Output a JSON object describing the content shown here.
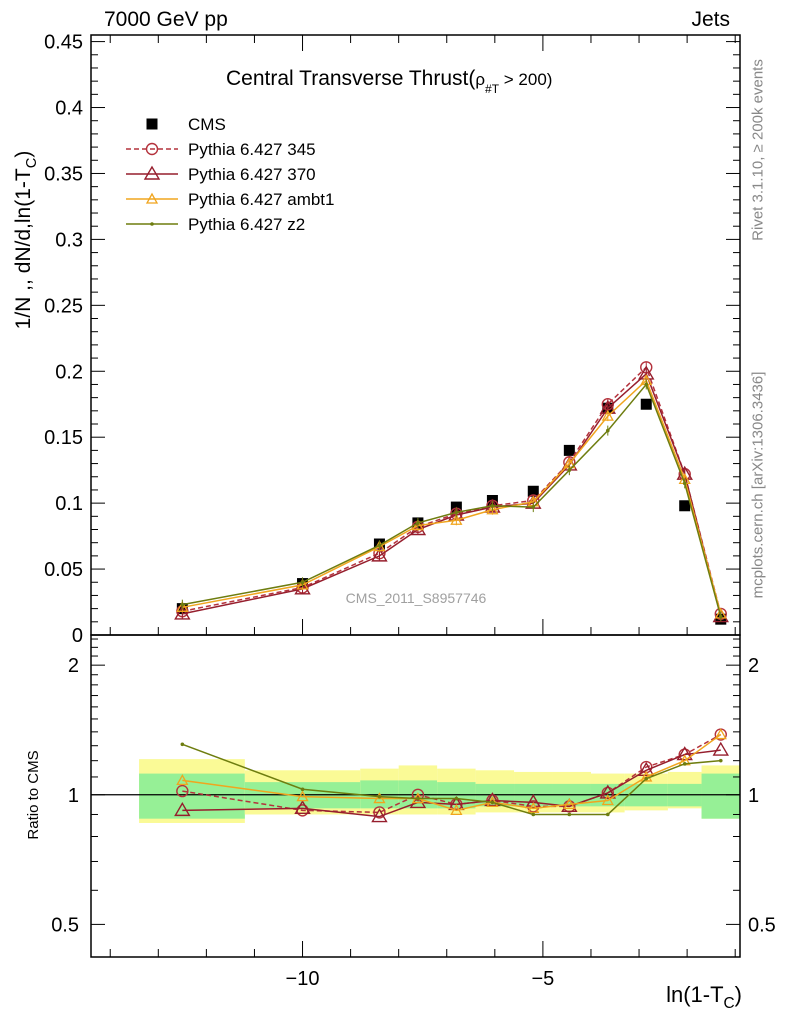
{
  "header": {
    "left": "7000 GeV pp",
    "right": "Jets"
  },
  "side": {
    "rivet": "Rivet 3.1.10, ≥ 200k events",
    "mcplots": "mcplots.cern.ch [arXiv:1306.3436]"
  },
  "watermark": "CMS_2011_S8957746",
  "colors": {
    "cms": "#000000",
    "p345": "#b4323c",
    "p370": "#961e2d",
    "ambt1": "#f0a51e",
    "z2": "#6e7d0f",
    "band_inner": "#96f096",
    "band_outer": "#fafa96"
  },
  "chart_data": [
    {
      "type": "line",
      "panel": "main",
      "title": "Central Transverse Thrust",
      "title_sub": "ρ",
      "title_sub_index": "#T",
      "title_cond": " > 200)",
      "ylabel": "1/N ,, dN/d,ln(1-T",
      "ylabel_sub": "C",
      "ylabel_tail": ")",
      "xlim": [
        -14.4,
        -0.9
      ],
      "ylim": [
        0,
        0.455
      ],
      "yticks": [
        0,
        0.05,
        0.1,
        0.15,
        0.2,
        0.25,
        0.3,
        0.35,
        0.4,
        0.45
      ],
      "ytick_labels": [
        "0",
        "0.05",
        "0.1",
        "0.15",
        "0.2",
        "0.25",
        "0.3",
        "0.35",
        "0.4",
        "0.45"
      ],
      "x": [
        -12.5,
        -10.0,
        -8.4,
        -7.6,
        -6.8,
        -6.05,
        -5.2,
        -4.45,
        -3.65,
        -2.85,
        -2.05,
        -1.3
      ],
      "series": [
        {
          "name": "CMS",
          "style": "cms",
          "values": [
            0.02,
            0.039,
            0.069,
            0.085,
            0.097,
            0.102,
            0.109,
            0.14,
            0.172,
            0.175,
            0.098,
            0.012
          ]
        },
        {
          "name": "Pythia 6.427 345",
          "style": "p345",
          "values": [
            0.018,
            0.036,
            0.062,
            0.082,
            0.092,
            0.098,
            0.102,
            0.131,
            0.175,
            0.203,
            0.122,
            0.016
          ]
        },
        {
          "name": "Pythia 6.427 370",
          "style": "p370",
          "values": [
            0.016,
            0.035,
            0.06,
            0.08,
            0.091,
            0.097,
            0.1,
            0.129,
            0.172,
            0.198,
            0.122,
            0.014
          ]
        },
        {
          "name": "Pythia 6.427 ambt1",
          "style": "ambt1",
          "values": [
            0.021,
            0.038,
            0.067,
            0.083,
            0.087,
            0.095,
            0.101,
            0.13,
            0.166,
            0.193,
            0.118,
            0.016
          ]
        },
        {
          "name": "Pythia 6.427 z2",
          "style": "z2",
          "values": [
            0.023,
            0.04,
            0.068,
            0.085,
            0.093,
            0.098,
            0.097,
            0.125,
            0.155,
            0.19,
            0.115,
            0.014
          ]
        }
      ]
    },
    {
      "type": "line",
      "panel": "ratio",
      "ylabel": "Ratio to CMS",
      "xlabel": "ln(1-T",
      "xlabel_sub": "C",
      "xlabel_tail": ")",
      "xlim": [
        -14.4,
        -0.9
      ],
      "ylim": [
        0.42,
        2.35
      ],
      "ylog": true,
      "yticks": [
        0.5,
        1,
        2
      ],
      "ytick_labels": [
        "0.5",
        "1",
        "2"
      ],
      "xticks": [
        -10,
        -5
      ],
      "xtick_labels": [
        "−10",
        "−5"
      ],
      "x": [
        -12.5,
        -10.0,
        -8.4,
        -7.6,
        -6.8,
        -6.05,
        -5.2,
        -4.45,
        -3.65,
        -2.85,
        -2.05,
        -1.3
      ],
      "bands": {
        "edges": [
          -13.4,
          -11.2,
          -8.8,
          -8.0,
          -7.2,
          -6.4,
          -5.6,
          -4.8,
          -4.0,
          -3.3,
          -2.4,
          -1.7,
          -0.9
        ],
        "inner_lo": [
          0.88,
          0.93,
          0.93,
          0.93,
          0.93,
          0.94,
          0.94,
          0.94,
          0.94,
          0.94,
          0.94,
          0.88
        ],
        "inner_hi": [
          1.12,
          1.07,
          1.08,
          1.08,
          1.07,
          1.06,
          1.06,
          1.06,
          1.06,
          1.06,
          1.06,
          1.12
        ],
        "outer_lo": [
          0.86,
          0.9,
          0.9,
          0.9,
          0.9,
          0.91,
          0.91,
          0.91,
          0.91,
          0.92,
          0.93,
          0.88
        ],
        "outer_hi": [
          1.21,
          1.14,
          1.15,
          1.17,
          1.15,
          1.14,
          1.13,
          1.13,
          1.12,
          1.12,
          1.13,
          1.17
        ]
      },
      "series": [
        {
          "name": "Pythia 6.427 345",
          "style": "p345",
          "values": [
            1.02,
            0.92,
            0.91,
            1.0,
            0.95,
            0.97,
            0.94,
            0.94,
            1.01,
            1.16,
            1.24,
            1.38
          ]
        },
        {
          "name": "Pythia 6.427 370",
          "style": "p370",
          "values": [
            0.92,
            0.93,
            0.89,
            0.96,
            0.95,
            0.97,
            0.96,
            0.94,
            1.01,
            1.14,
            1.24,
            1.27
          ]
        },
        {
          "name": "Pythia 6.427 ambt1",
          "style": "ambt1",
          "values": [
            1.08,
            0.99,
            0.98,
            0.98,
            0.92,
            0.96,
            0.93,
            0.95,
            0.97,
            1.1,
            1.2,
            1.38
          ]
        },
        {
          "name": "Pythia 6.427 z2",
          "style": "z2",
          "values": [
            1.31,
            1.03,
            0.99,
            0.98,
            0.98,
            0.96,
            0.9,
            0.9,
            0.9,
            1.09,
            1.18,
            1.2
          ]
        }
      ]
    }
  ]
}
